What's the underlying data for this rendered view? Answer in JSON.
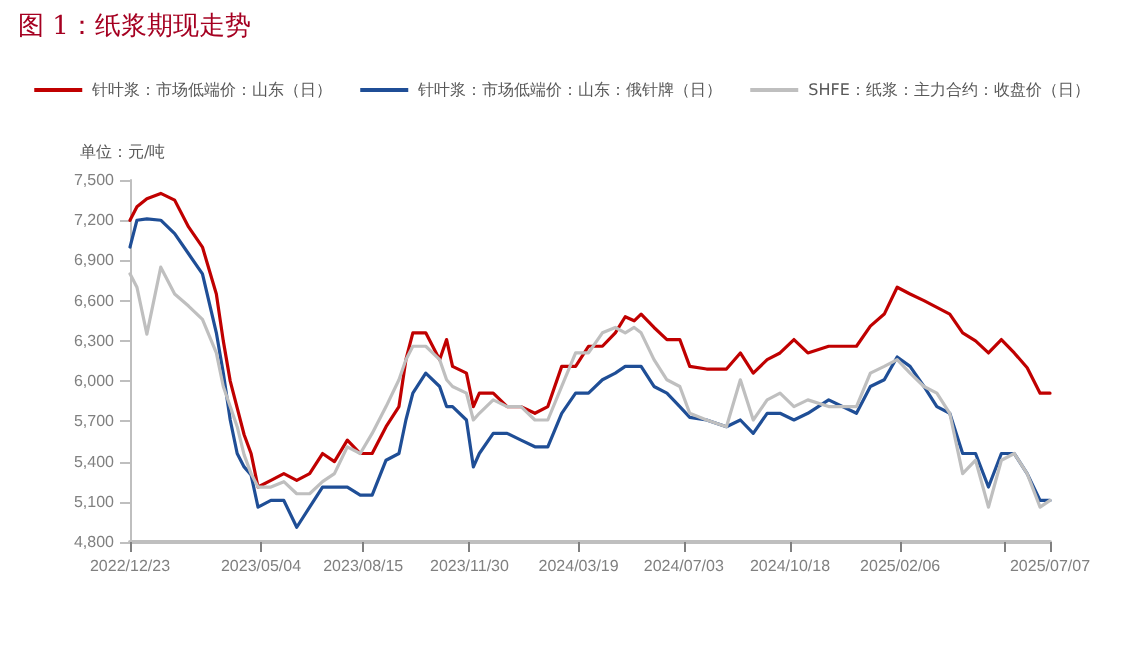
{
  "chart_data": {
    "type": "line",
    "title": "图 1：纸浆期现走势",
    "ylabel": "单位：元/吨",
    "x": [
      "2022-12-23",
      "2022-12-30",
      "2023-01-09",
      "2023-01-23",
      "2023-02-06",
      "2023-02-20",
      "2023-03-06",
      "2023-03-20",
      "2023-03-27",
      "2023-04-03",
      "2023-04-10",
      "2023-04-17",
      "2023-04-24",
      "2023-05-01",
      "2023-05-14",
      "2023-05-27",
      "2023-06-09",
      "2023-06-22",
      "2023-07-05",
      "2023-07-17",
      "2023-07-30",
      "2023-08-12",
      "2023-08-24",
      "2023-09-07",
      "2023-09-20",
      "2023-09-27",
      "2023-10-04",
      "2023-10-17",
      "2023-10-31",
      "2023-11-07",
      "2023-11-13",
      "2023-11-27",
      "2023-12-04",
      "2023-12-10",
      "2023-12-24",
      "2024-01-07",
      "2024-01-21",
      "2024-02-04",
      "2024-02-17",
      "2024-03-02",
      "2024-03-16",
      "2024-03-29",
      "2024-04-12",
      "2024-04-25",
      "2024-05-05",
      "2024-05-14",
      "2024-05-21",
      "2024-06-03",
      "2024-06-16",
      "2024-06-29",
      "2024-07-09",
      "2024-07-26",
      "2024-08-15",
      "2024-08-29",
      "2024-09-11",
      "2024-09-25",
      "2024-10-08",
      "2024-10-22",
      "2024-11-05",
      "2024-11-26",
      "2024-12-24",
      "2025-01-07",
      "2025-01-21",
      "2025-02-03",
      "2025-02-16",
      "2025-03-02",
      "2025-03-15",
      "2025-03-28",
      "2025-04-10",
      "2025-04-23",
      "2025-05-06",
      "2025-05-19",
      "2025-06-01",
      "2025-06-14",
      "2025-06-27",
      "2025-07-07"
    ],
    "series": [
      {
        "name": "针叶浆：市场低端价：山东（日）",
        "color": "#c00000",
        "values": [
          7200,
          7300,
          7360,
          7400,
          7350,
          7150,
          7000,
          6650,
          6300,
          6000,
          5800,
          5600,
          5460,
          5210,
          5260,
          5310,
          5260,
          5310,
          5460,
          5400,
          5560,
          5460,
          5460,
          5660,
          5810,
          6160,
          6360,
          6360,
          6160,
          6310,
          6110,
          6060,
          5810,
          5910,
          5910,
          5810,
          5810,
          5760,
          5810,
          6110,
          6110,
          6260,
          6260,
          6360,
          6480,
          6450,
          6500,
          6400,
          6310,
          6310,
          6110,
          6090,
          6090,
          6210,
          6060,
          6160,
          6210,
          6310,
          6210,
          6260,
          6260,
          6410,
          6500,
          6700,
          6650,
          6600,
          6550,
          6500,
          6360,
          6300,
          6210,
          6310,
          6210,
          6100,
          5910,
          5910
        ]
      },
      {
        "name": "针叶浆：市场低端价：山东：俄针牌（日）",
        "color": "#1f4e96",
        "values": [
          7000,
          7200,
          7210,
          7200,
          7100,
          6950,
          6800,
          6360,
          6060,
          5710,
          5460,
          5360,
          5300,
          5060,
          5110,
          5110,
          4910,
          5060,
          5210,
          5210,
          5210,
          5150,
          5150,
          5410,
          5460,
          5710,
          5910,
          6060,
          5960,
          5810,
          5810,
          5710,
          5360,
          5460,
          5610,
          5610,
          5560,
          5510,
          5510,
          5760,
          5910,
          5910,
          6010,
          6060,
          6110,
          6110,
          6110,
          5960,
          5910,
          5810,
          5730,
          5710,
          5660,
          5710,
          5610,
          5760,
          5760,
          5710,
          5760,
          5860,
          5760,
          5960,
          6010,
          6180,
          6110,
          5960,
          5810,
          5760,
          5460,
          5460,
          5210,
          5460,
          5460,
          5310,
          5110,
          5110
        ]
      },
      {
        "name": "SHFE：纸浆：主力合约：收盘价（日）",
        "color": "#bfbfbf",
        "values": [
          6800,
          6700,
          6350,
          6850,
          6650,
          6560,
          6460,
          6210,
          5960,
          5810,
          5660,
          5450,
          5310,
          5210,
          5210,
          5250,
          5160,
          5160,
          5250,
          5310,
          5510,
          5460,
          5610,
          5810,
          6010,
          6160,
          6260,
          6260,
          6160,
          6010,
          5960,
          5910,
          5710,
          5760,
          5860,
          5810,
          5810,
          5710,
          5710,
          5960,
          6210,
          6210,
          6360,
          6400,
          6360,
          6400,
          6360,
          6160,
          6010,
          5960,
          5760,
          5710,
          5660,
          6010,
          5710,
          5860,
          5910,
          5810,
          5860,
          5810,
          5810,
          6060,
          6110,
          6160,
          6060,
          5960,
          5910,
          5760,
          5310,
          5410,
          5060,
          5410,
          5460,
          5310,
          5060,
          5110
        ]
      }
    ],
    "xlim": [
      "2022-12-23",
      "2025-07-07"
    ],
    "xticks": [
      {
        "value": "2022-12-23",
        "label": "2022/12/23"
      },
      {
        "value": "2023-05-04",
        "label": "2023/05/04"
      },
      {
        "value": "2023-08-15",
        "label": "2023/08/15"
      },
      {
        "value": "2023-11-30",
        "label": "2023/11/30"
      },
      {
        "value": "2024-03-19",
        "label": "2024/03/19"
      },
      {
        "value": "2024-07-03",
        "label": "2024/07/03"
      },
      {
        "value": "2024-10-18",
        "label": "2024/10/18"
      },
      {
        "value": "2025-02-06",
        "label": "2025/02/06"
      },
      {
        "value": "2025-05-23",
        "label": null
      },
      {
        "value": "2025-07-07",
        "label": "2025/07/07"
      }
    ],
    "ylim": [
      4800,
      7500
    ],
    "yticks": [
      {
        "value": 4800,
        "label": "4,800"
      },
      {
        "value": 5100,
        "label": "5,100"
      },
      {
        "value": 5400,
        "label": "5,400"
      },
      {
        "value": 5700,
        "label": "5,700"
      },
      {
        "value": 6000,
        "label": "6,000"
      },
      {
        "value": 6300,
        "label": "6,300"
      },
      {
        "value": 6600,
        "label": "6,600"
      },
      {
        "value": 6900,
        "label": "6,900"
      },
      {
        "value": 7200,
        "label": "7,200"
      },
      {
        "value": 7500,
        "label": "7,500"
      }
    ],
    "grid": false,
    "legend": "top",
    "marker": "none",
    "line_style": "solid"
  }
}
